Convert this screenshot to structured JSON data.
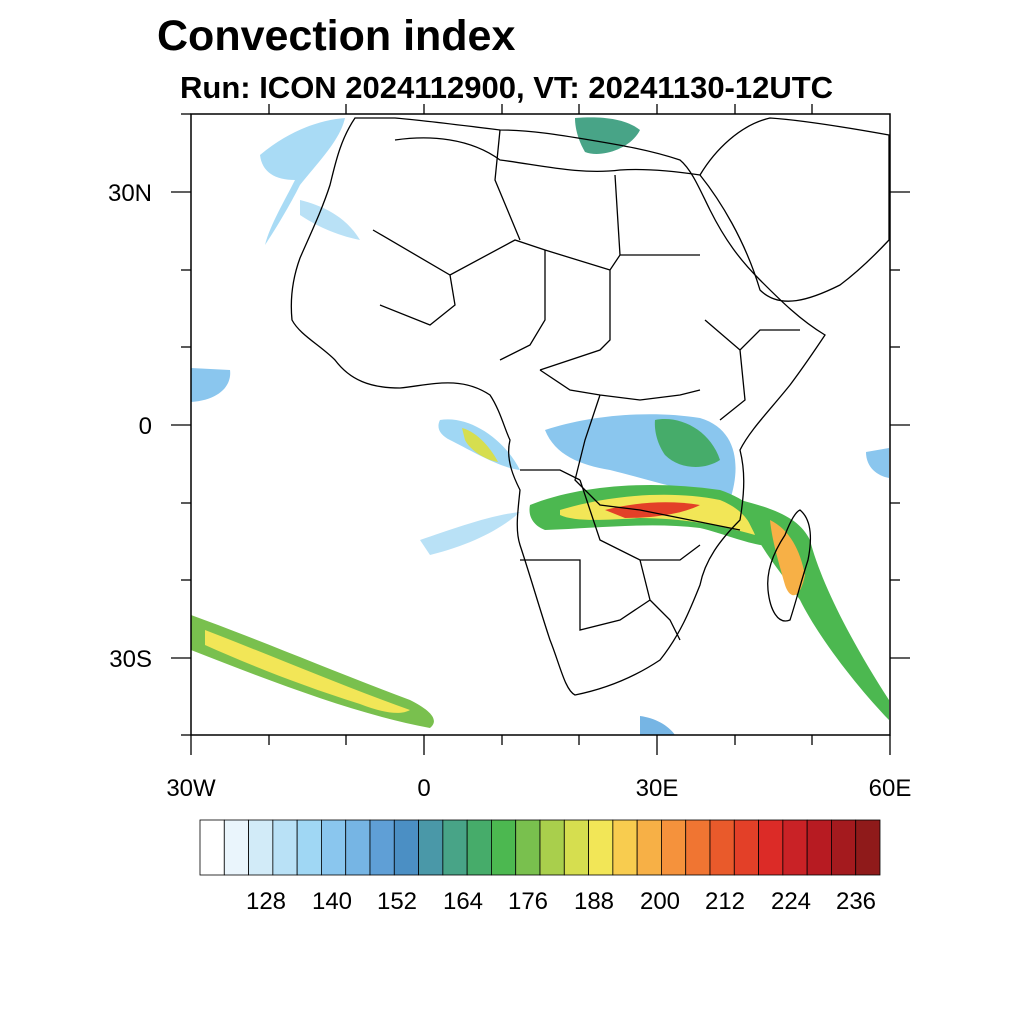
{
  "title": "Convection index",
  "subtitle": "Run: ICON 2024112900,  VT: 20241130-12UTC",
  "map": {
    "lat_labels": [
      "30N",
      "0",
      "30S"
    ],
    "lon_labels": [
      "30W",
      "0",
      "30E",
      "60E"
    ],
    "extent": {
      "lon": [
        -30,
        60
      ],
      "lat": [
        -40,
        40
      ]
    },
    "land_color": "#ffffff",
    "border_color": "#000000"
  },
  "colorbar": {
    "labels": [
      "128",
      "140",
      "152",
      "164",
      "176",
      "188",
      "200",
      "212",
      "224",
      "236"
    ],
    "colors": [
      "#ffffff",
      "#eaf5fc",
      "#d2ebf8",
      "#b9e1f6",
      "#a0d7f4",
      "#8ac6ee",
      "#76b5e4",
      "#5f9fd6",
      "#4b8fc4",
      "#4a98a8",
      "#48a487",
      "#46ac6a",
      "#4cb850",
      "#79c04e",
      "#a9cf4c",
      "#d6de4f",
      "#f2e657",
      "#f8cc4f",
      "#f7b046",
      "#f5923c",
      "#f07532",
      "#e95a2b",
      "#e34028",
      "#dc2b27",
      "#c92226",
      "#b71b22",
      "#a41a1e",
      "#8f1a1a"
    ]
  }
}
